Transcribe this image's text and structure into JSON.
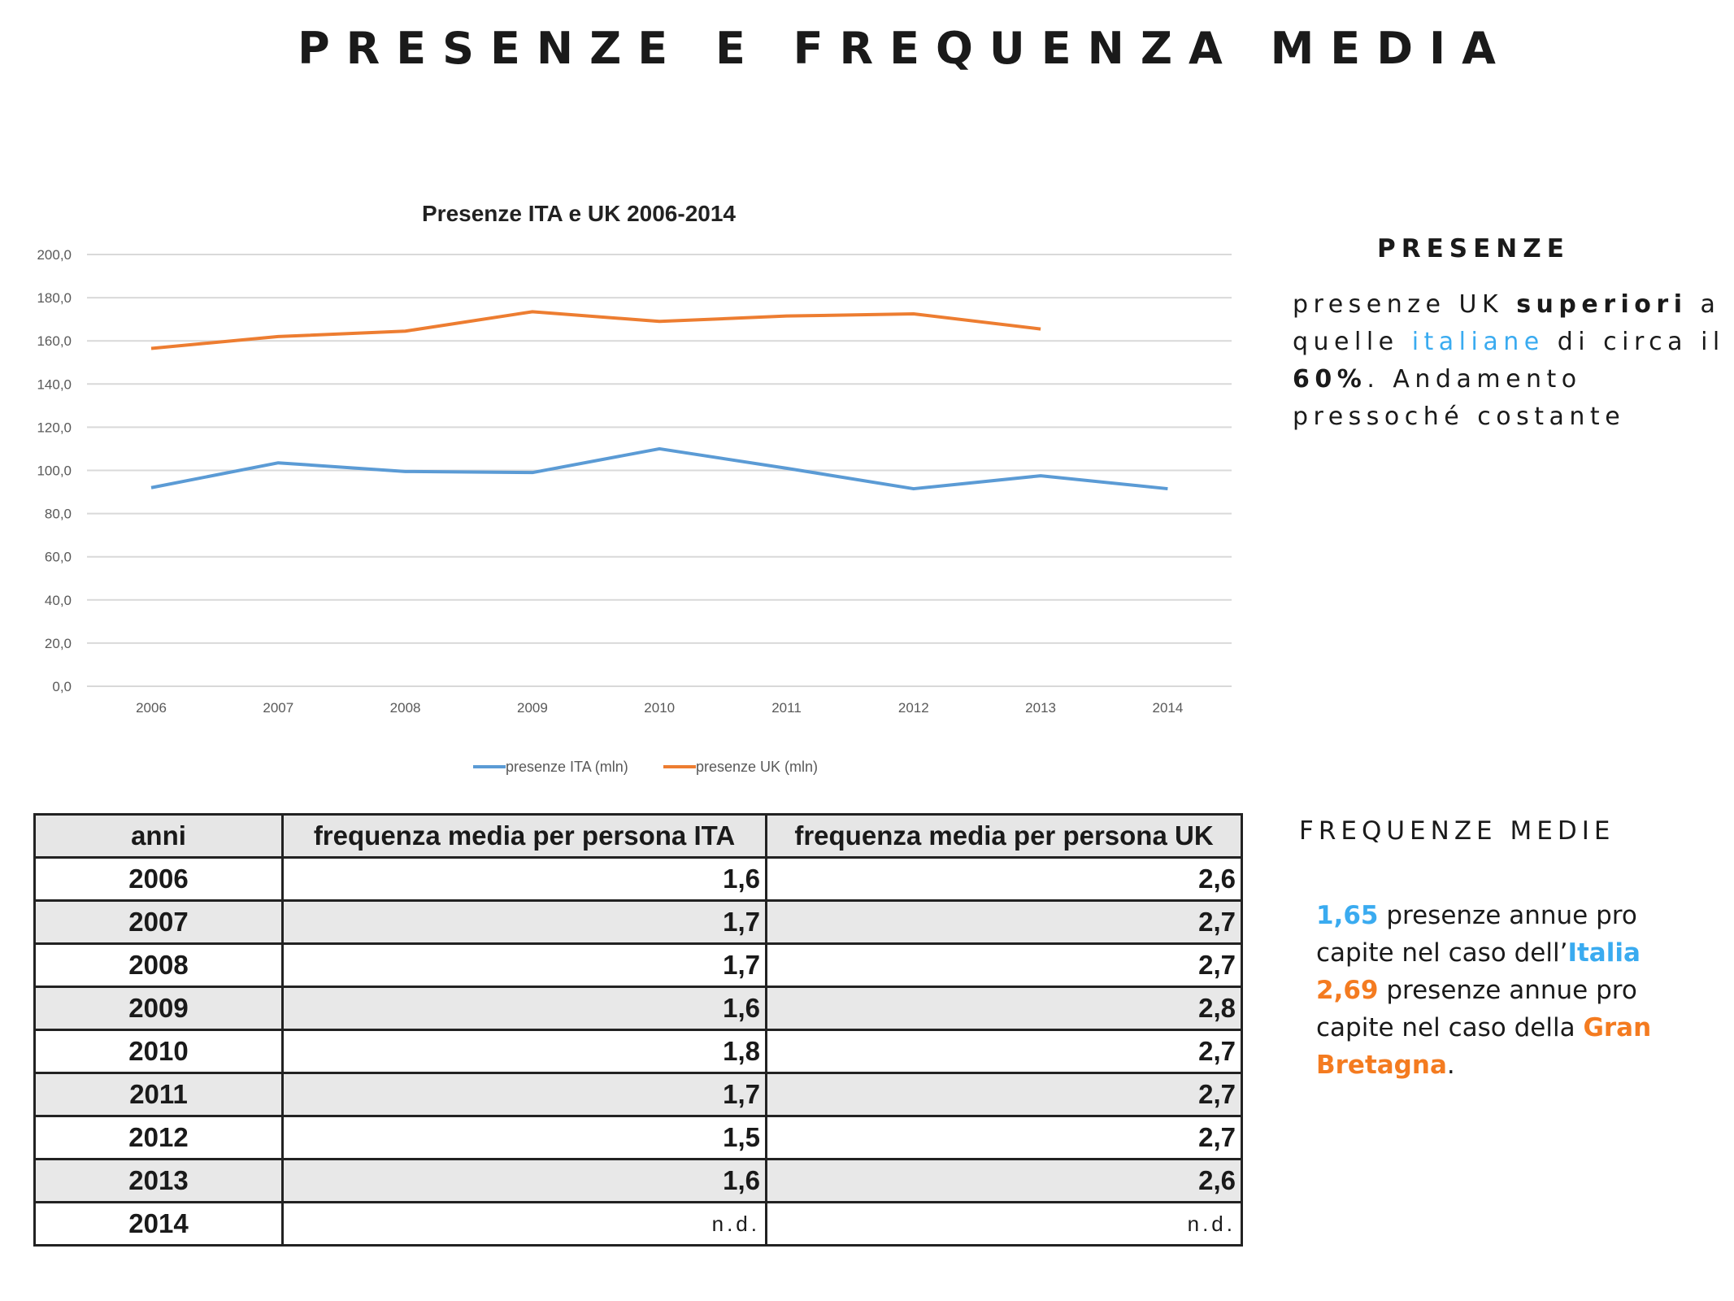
{
  "title": "PRESENZE E FREQUENZA MEDIA",
  "chart_data": {
    "type": "line",
    "title": "Presenze ITA e UK 2006-2014",
    "xlabel": "",
    "ylabel": "",
    "categories": [
      "2006",
      "2007",
      "2008",
      "2009",
      "2010",
      "2011",
      "2012",
      "2013",
      "2014"
    ],
    "ylim": [
      0,
      200
    ],
    "yticks": [
      "0,0",
      "20,0",
      "40,0",
      "60,0",
      "80,0",
      "100,0",
      "120,0",
      "140,0",
      "160,0",
      "180,0",
      "200,0"
    ],
    "grid": true,
    "legend_position": "bottom",
    "series": [
      {
        "name": "presenze ITA (mln)",
        "color": "#5b9bd5",
        "values": [
          92,
          103.5,
          99.5,
          99,
          110,
          101,
          91.5,
          97.5,
          91.5
        ]
      },
      {
        "name": "presenze UK (mln)",
        "color": "#ed7d31",
        "values": [
          156.5,
          162,
          164.5,
          173.5,
          169,
          171.5,
          172.5,
          165.5,
          null
        ]
      }
    ]
  },
  "table": {
    "headers": [
      "anni",
      "frequenza media per persona ITA",
      "frequenza media per persona UK"
    ],
    "rows": [
      [
        "2006",
        "1,6",
        "2,6"
      ],
      [
        "2007",
        "1,7",
        "2,7"
      ],
      [
        "2008",
        "1,7",
        "2,7"
      ],
      [
        "2009",
        "1,6",
        "2,8"
      ],
      [
        "2010",
        "1,8",
        "2,7"
      ],
      [
        "2011",
        "1,7",
        "2,7"
      ],
      [
        "2012",
        "1,5",
        "2,7"
      ],
      [
        "2013",
        "1,6",
        "2,6"
      ],
      [
        "2014",
        "n.d.",
        "n.d."
      ]
    ]
  },
  "presenze": {
    "heading": "PRESENZE",
    "t1": "presenze UK ",
    "t2": "superiori",
    "t3": " a quelle ",
    "t4": "italiane",
    "t5": " di circa il ",
    "t6": "60%",
    "t7": ". Andamento pressoché costante"
  },
  "frequenze": {
    "heading": "FREQUENZE MEDIE",
    "ita_value": "1,65",
    "t1": " presenze annue pro capite nel caso dell’",
    "ita": "Italia",
    "uk_value": "2,69",
    "t2": " presenze annue pro capite nel caso della ",
    "uk": "Gran Bretagna",
    "t3": "."
  },
  "colors": {
    "blue": "#3aabf0",
    "orange": "#f47b20"
  }
}
